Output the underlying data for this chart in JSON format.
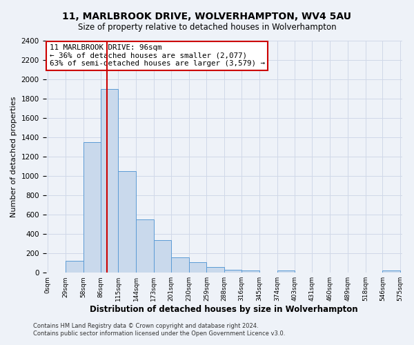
{
  "title": "11, MARLBROOK DRIVE, WOLVERHAMPTON, WV4 5AU",
  "subtitle": "Size of property relative to detached houses in Wolverhampton",
  "xlabel": "Distribution of detached houses by size in Wolverhampton",
  "ylabel": "Number of detached properties",
  "bin_edges": [
    0,
    29,
    58,
    86,
    115,
    144,
    173,
    201,
    230,
    259,
    288,
    316,
    345,
    374,
    403,
    431,
    460,
    489,
    518,
    546,
    575
  ],
  "bar_heights": [
    0,
    125,
    1350,
    1900,
    1050,
    550,
    340,
    160,
    105,
    60,
    30,
    20,
    5,
    20,
    0,
    0,
    0,
    0,
    0,
    25
  ],
  "bar_color": "#c9d9ec",
  "bar_edge_color": "#5b9bd5",
  "grid_color": "#d0d8e8",
  "background_color": "#eef2f8",
  "marker_value": 96,
  "marker_color": "#cc0000",
  "annotation_title": "11 MARLBROOK DRIVE: 96sqm",
  "annotation_line1": "← 36% of detached houses are smaller (2,077)",
  "annotation_line2": "63% of semi-detached houses are larger (3,579) →",
  "annotation_box_color": "#ffffff",
  "annotation_box_edge": "#cc0000",
  "ylim": [
    0,
    2400
  ],
  "yticks": [
    0,
    200,
    400,
    600,
    800,
    1000,
    1200,
    1400,
    1600,
    1800,
    2000,
    2200,
    2400
  ],
  "tick_labels": [
    "0sqm",
    "29sqm",
    "58sqm",
    "86sqm",
    "115sqm",
    "144sqm",
    "173sqm",
    "201sqm",
    "230sqm",
    "259sqm",
    "288sqm",
    "316sqm",
    "345sqm",
    "374sqm",
    "403sqm",
    "431sqm",
    "460sqm",
    "489sqm",
    "518sqm",
    "546sqm",
    "575sqm"
  ],
  "footnote1": "Contains HM Land Registry data © Crown copyright and database right 2024.",
  "footnote2": "Contains public sector information licensed under the Open Government Licence v3.0."
}
